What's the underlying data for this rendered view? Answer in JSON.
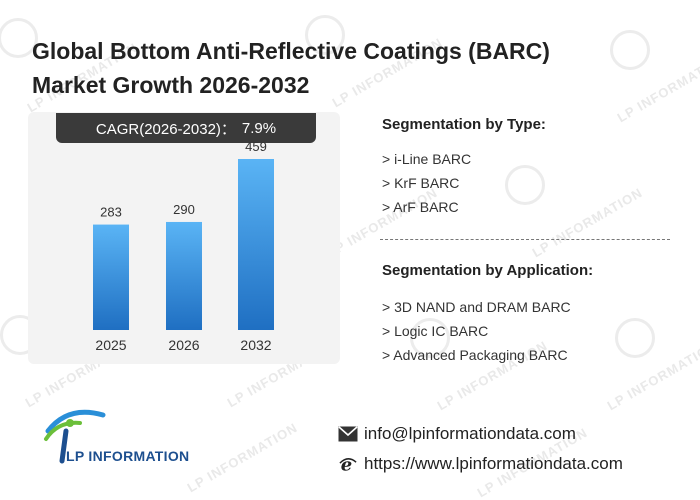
{
  "title": {
    "line1": "Global Bottom Anti-Reflective Coatings (BARC)",
    "line2": "Market Growth 2026-2032"
  },
  "cagr": {
    "label": "CAGR(2026-2032)：",
    "value": "7.9%"
  },
  "chart_data": {
    "type": "bar",
    "categories": [
      "2025",
      "2026",
      "2032"
    ],
    "values": [
      283,
      290,
      459
    ],
    "title": "",
    "xlabel": "",
    "ylabel": "",
    "ylim": [
      0,
      500
    ],
    "grid": false,
    "legend": "none",
    "colors": {
      "bar_top": "#5ab4f5",
      "bar_bottom": "#1f6fc2"
    }
  },
  "segmentation_type": {
    "heading": "Segmentation by Type:",
    "items": [
      "> i-Line BARC",
      "> KrF BARC",
      "> ArF BARC"
    ]
  },
  "segmentation_application": {
    "heading": "Segmentation by Application:",
    "items": [
      "> 3D NAND and DRAM BARC",
      "> Logic IC BARC",
      "> Advanced Packaging BARC"
    ]
  },
  "logo": {
    "text": "LP INFORMATION",
    "icon": "lp-logo-icon"
  },
  "watermark": "LP INFORMATION",
  "contact": {
    "email_icon": "envelope-icon",
    "email": "info@lpinformationdata.com",
    "web_icon": "browser-e-icon",
    "website": "https://www.lpinformationdata.com"
  }
}
